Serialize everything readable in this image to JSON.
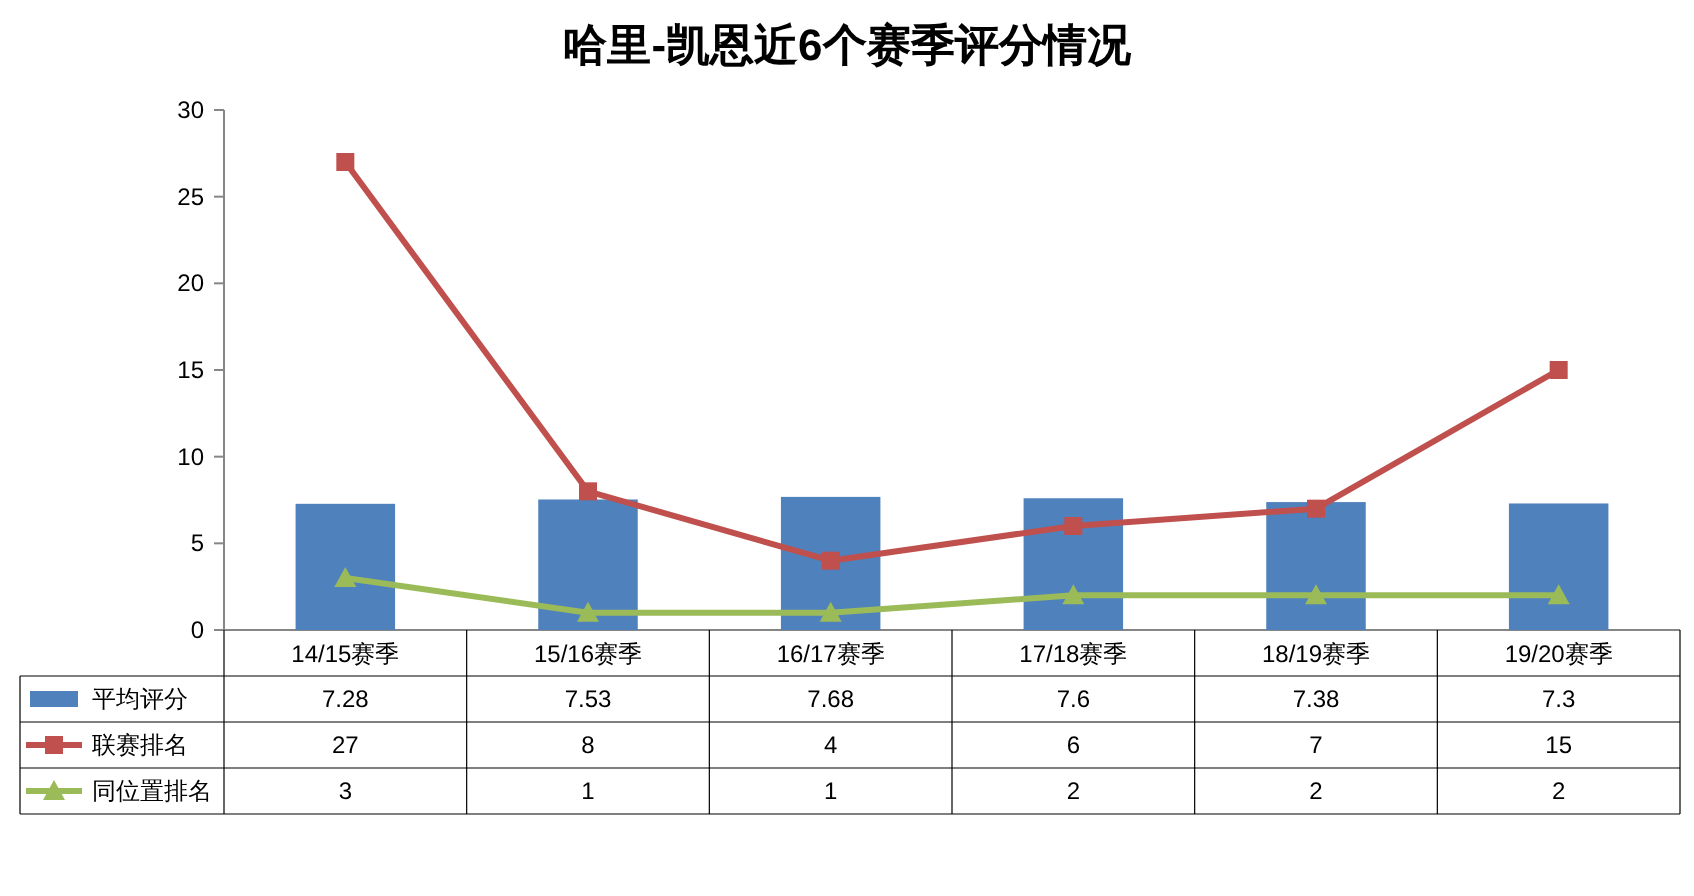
{
  "chart_data": {
    "type": "bar",
    "title": "哈里-凯恩近6个赛季评分情况",
    "categories": [
      "14/15赛季",
      "15/16赛季",
      "16/17赛季",
      "17/18赛季",
      "18/19赛季",
      "19/20赛季"
    ],
    "series": [
      {
        "name": "平均评分",
        "color": "#4f81bd",
        "values": [
          7.28,
          7.53,
          7.68,
          7.6,
          7.38,
          7.3
        ]
      },
      {
        "name": "联赛排名",
        "type": "line",
        "color": "#c0504d",
        "marker": "square",
        "values": [
          27,
          8,
          4,
          6,
          7,
          15
        ]
      },
      {
        "name": "同位置排名",
        "type": "line",
        "color": "#9bbb59",
        "marker": "triangle",
        "values": [
          3,
          1,
          1,
          2,
          2,
          2
        ]
      }
    ],
    "ylim": [
      0,
      30
    ],
    "yticks": [
      0,
      5,
      10,
      15,
      20,
      25,
      30
    ],
    "data_labels": true,
    "legend": "bottom"
  }
}
